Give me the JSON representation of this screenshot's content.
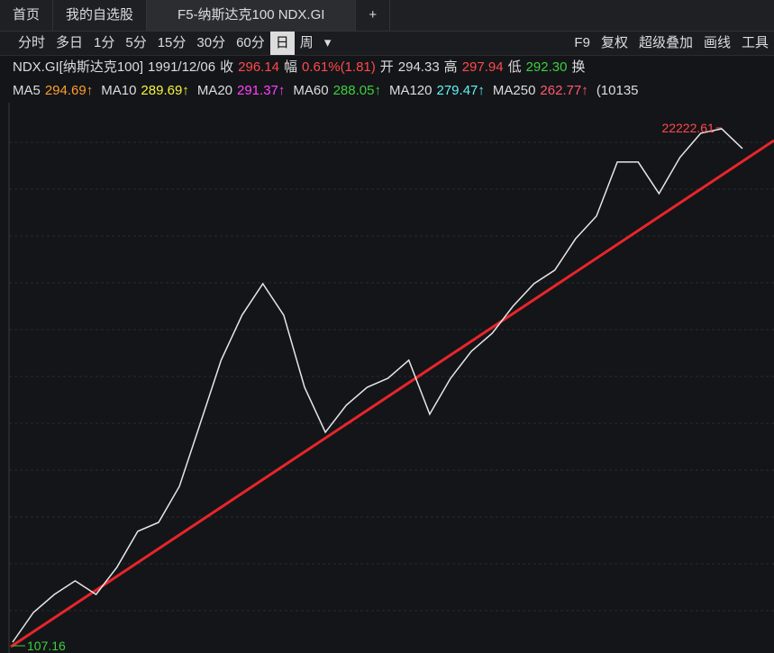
{
  "tabs": [
    "首页",
    "我的自选股",
    "F5-纳斯达克100 NDX.GI",
    "+"
  ],
  "toolbar": {
    "left": [
      "分时",
      "多日",
      "1分",
      "5分",
      "15分",
      "30分",
      "60分",
      "日",
      "周",
      "▾"
    ],
    "active": "日",
    "right": [
      "F9",
      "复权",
      "超级叠加",
      "画线",
      "工具"
    ]
  },
  "quote": [
    {
      "text": "NDX.GI[纳斯达克100]",
      "color": "#dcdcdc"
    },
    {
      "text": "1991/12/06",
      "color": "#dcdcdc"
    },
    {
      "text": "收",
      "color": "#dcdcdc"
    },
    {
      "text": "296.14",
      "color": "#ff4a4a"
    },
    {
      "text": "幅",
      "color": "#dcdcdc"
    },
    {
      "text": "0.61%(1.81)",
      "color": "#ff4a4a"
    },
    {
      "text": "开",
      "color": "#dcdcdc"
    },
    {
      "text": "294.33",
      "color": "#dcdcdc"
    },
    {
      "text": "高",
      "color": "#dcdcdc"
    },
    {
      "text": "297.94",
      "color": "#ff4a4a"
    },
    {
      "text": "低",
      "color": "#dcdcdc"
    },
    {
      "text": "292.30",
      "color": "#3cd03c"
    },
    {
      "text": "换",
      "color": "#dcdcdc"
    }
  ],
  "ma": [
    {
      "name": "MA5",
      "value": "294.69↑",
      "color": "#ff9d2e"
    },
    {
      "name": "MA10",
      "value": "289.69↑",
      "color": "#f5f53c"
    },
    {
      "name": "MA20",
      "value": "291.37↑",
      "color": "#ff40ff"
    },
    {
      "name": "MA60",
      "value": "288.05↑",
      "color": "#3cd03c"
    },
    {
      "name": "MA120",
      "value": "279.47↑",
      "color": "#5ff5f5"
    },
    {
      "name": "MA250",
      "value": "262.77↑",
      "color": "#ff5a6e"
    }
  ],
  "ma_more": "(10135",
  "chart_data": {
    "type": "line",
    "log_scale": true,
    "color": "#e6e6e6",
    "values": [
      107.16,
      146,
      176,
      202.6,
      176,
      233.2,
      339,
      372,
      541,
      1042,
      2007,
      3205,
      4445,
      3205,
      1515,
      949,
      1257,
      1515,
      1663,
      2007,
      1145,
      1663,
      2203,
      2656,
      3518,
      4445,
      5118,
      7099,
      8974,
      15740,
      15740,
      11340,
      16500,
      21230,
      22222.61,
      18110
    ],
    "max_index": 34,
    "min_index": 0,
    "max_color": "#ff4a4a",
    "min_color": "#3cd03c"
  }
}
